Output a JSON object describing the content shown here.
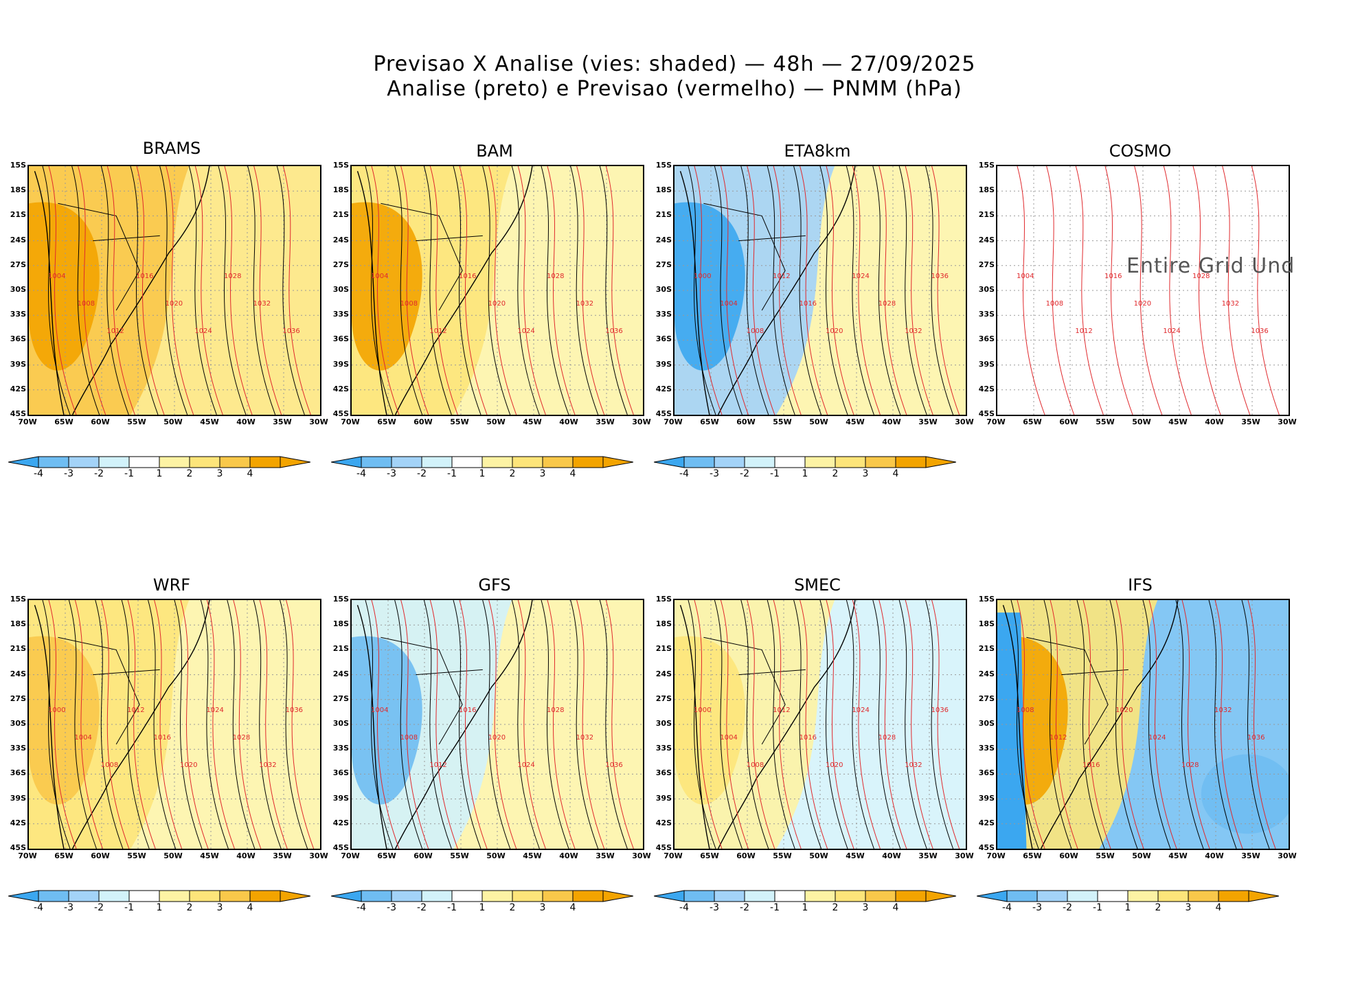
{
  "title": {
    "line1": "Previsao X Analise (vies: shaded) — 48h — 27/09/2025",
    "line2": "Analise (preto) e Previsao (vermelho) — PNMM (hPa)"
  },
  "axes": {
    "lat_labels": [
      "15S",
      "18S",
      "21S",
      "24S",
      "27S",
      "30S",
      "33S",
      "36S",
      "39S",
      "42S",
      "45S"
    ],
    "lon_labels": [
      "70W",
      "65W",
      "60W",
      "55W",
      "50W",
      "45W",
      "40W",
      "35W",
      "30W"
    ]
  },
  "colorbar": {
    "tick_labels": [
      "-4",
      "-3",
      "-2",
      "-1",
      "1",
      "2",
      "3",
      "4"
    ],
    "colors": [
      "#3ba7f0",
      "#6fbdf2",
      "#a3d3f8",
      "#d2f2fa",
      "#ffffff",
      "#fdf3a4",
      "#fde57a",
      "#f9c84a",
      "#f3a400",
      "#f3a400"
    ]
  },
  "colors": {
    "analysis": "#000000",
    "forecast": "#e0282c"
  },
  "panels": [
    {
      "name": "BRAMS",
      "bias": "warm_strong",
      "isobars": [
        "1004",
        "1008",
        "1012",
        "1016",
        "1020",
        "1024",
        "1028",
        "1032",
        "1036"
      ],
      "colorbar": true
    },
    {
      "name": "BAM",
      "bias": "warm_west",
      "isobars": [
        "1004",
        "1008",
        "1012",
        "1016",
        "1020",
        "1024",
        "1028",
        "1032",
        "1036"
      ],
      "colorbar": true
    },
    {
      "name": "ETA8km",
      "bias": "cool",
      "isobars": [
        "1000",
        "1004",
        "1008",
        "1012",
        "1016",
        "1020",
        "1024",
        "1028",
        "1032",
        "1036"
      ],
      "colorbar": true
    },
    {
      "name": "COSMO",
      "bias": "none",
      "isobars": [
        "1004",
        "1008",
        "1012",
        "1016",
        "1020",
        "1024",
        "1028",
        "1032",
        "1036"
      ],
      "colorbar": false,
      "note": "Entire Grid Und"
    },
    {
      "name": "WRF",
      "bias": "warm",
      "isobars": [
        "1000",
        "1004",
        "1008",
        "1012",
        "1016",
        "1020",
        "1024",
        "1028",
        "1032",
        "1036"
      ],
      "colorbar": true
    },
    {
      "name": "GFS",
      "bias": "cool_north",
      "isobars": [
        "1004",
        "1008",
        "1012",
        "1016",
        "1020",
        "1024",
        "1028",
        "1032",
        "1036"
      ],
      "colorbar": true
    },
    {
      "name": "SMEC",
      "bias": "warm_light",
      "isobars": [
        "1000",
        "1004",
        "1008",
        "1012",
        "1016",
        "1020",
        "1024",
        "1028",
        "1032",
        "1036"
      ],
      "colorbar": true
    },
    {
      "name": "IFS",
      "bias": "warm_strong_east_cool",
      "isobars": [
        "1008",
        "1012",
        "1016",
        "1020",
        "1024",
        "1028",
        "1032",
        "1036"
      ],
      "colorbar": true
    }
  ]
}
